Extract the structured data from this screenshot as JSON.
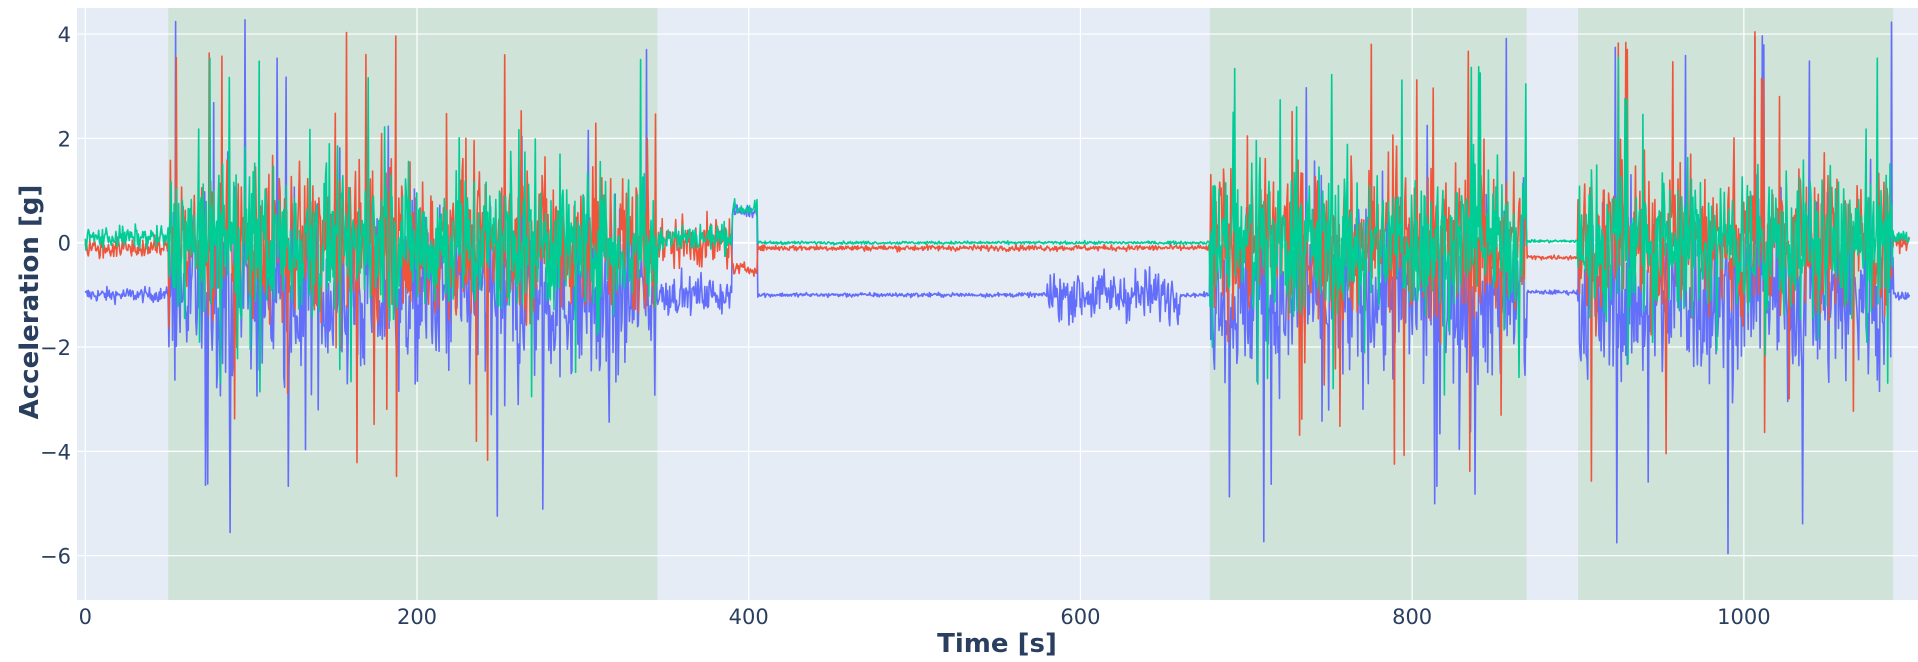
{
  "chart_data": {
    "type": "line",
    "title": "",
    "xlabel": "Time [s]",
    "ylabel": "Acceleration [g]",
    "xlim": [
      -5,
      1105
    ],
    "ylim": [
      -6.85,
      4.5
    ],
    "x_ticks": [
      0,
      200,
      400,
      600,
      800,
      1000
    ],
    "y_ticks": [
      -6,
      -4,
      -2,
      0,
      2,
      4
    ],
    "x_tick_labels": [
      "0",
      "200",
      "400",
      "600",
      "800",
      "1000"
    ],
    "y_tick_labels": [
      "−6",
      "−4",
      "−2",
      "0",
      "2",
      "4"
    ],
    "grid": true,
    "legend": "none",
    "plot_background": "#e5ecf6",
    "shaded_regions": [
      {
        "x0": 50,
        "x1": 345
      },
      {
        "x0": 678,
        "x1": 869
      },
      {
        "x0": 900,
        "x1": 1090
      }
    ],
    "shade_color": "#cfe3d8",
    "series": [
      {
        "color": "#636efa",
        "baseline_segments": [
          {
            "x0": 0,
            "x1": 50,
            "level": -1.0,
            "noise": 0.1
          },
          {
            "x0": 345,
            "x1": 390,
            "level": -1.0,
            "noise": 0.25
          },
          {
            "x0": 390,
            "x1": 405,
            "level": 0.6,
            "noise": 0.08
          },
          {
            "x0": 405,
            "x1": 678,
            "level": -1.0,
            "noise": 0.03
          },
          {
            "x0": 580,
            "x1": 660,
            "level": -1.0,
            "noise": 0.35
          },
          {
            "x0": 869,
            "x1": 900,
            "level": -0.95,
            "noise": 0.03
          },
          {
            "x0": 1090,
            "x1": 1100,
            "level": -1.0,
            "noise": 0.1
          }
        ],
        "active_center": -1.0,
        "active_amplitude": 2.2,
        "spike_range": [
          -6.1,
          4.3
        ]
      },
      {
        "color": "#ef553b",
        "baseline_segments": [
          {
            "x0": 0,
            "x1": 50,
            "level": -0.1,
            "noise": 0.15
          },
          {
            "x0": 345,
            "x1": 390,
            "level": 0.0,
            "noise": 0.35
          },
          {
            "x0": 390,
            "x1": 405,
            "level": -0.5,
            "noise": 0.08
          },
          {
            "x0": 405,
            "x1": 678,
            "level": -0.1,
            "noise": 0.04
          },
          {
            "x0": 869,
            "x1": 900,
            "level": -0.28,
            "noise": 0.03
          },
          {
            "x0": 1090,
            "x1": 1100,
            "level": 0.0,
            "noise": 0.1
          }
        ],
        "active_center": 0.0,
        "active_amplitude": 1.9,
        "spike_range": [
          -4.7,
          4.1
        ]
      },
      {
        "color": "#00cc96",
        "baseline_segments": [
          {
            "x0": 0,
            "x1": 50,
            "level": 0.1,
            "noise": 0.15
          },
          {
            "x0": 345,
            "x1": 390,
            "level": 0.1,
            "noise": 0.2
          },
          {
            "x0": 390,
            "x1": 405,
            "level": 0.65,
            "noise": 0.1
          },
          {
            "x0": 405,
            "x1": 678,
            "level": 0.0,
            "noise": 0.02
          },
          {
            "x0": 869,
            "x1": 900,
            "level": 0.03,
            "noise": 0.02
          },
          {
            "x0": 1090,
            "x1": 1100,
            "level": 0.1,
            "noise": 0.1
          }
        ],
        "active_center": 0.0,
        "active_amplitude": 1.8,
        "spike_range": [
          -3.0,
          3.6
        ]
      }
    ]
  }
}
